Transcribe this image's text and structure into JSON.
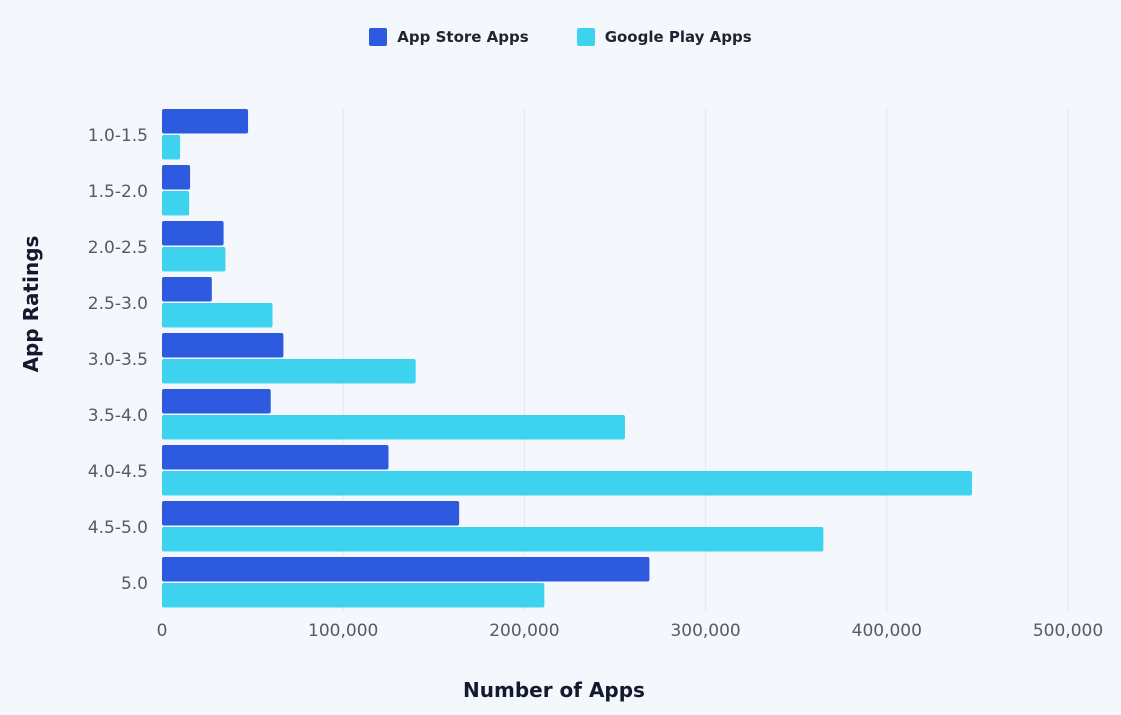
{
  "chart_data": {
    "type": "bar",
    "orientation": "horizontal",
    "title": "",
    "xlabel": "Number of Apps",
    "ylabel": "App Ratings",
    "categories": [
      "1.0-1.5",
      "1.5-2.0",
      "2.0-2.5",
      "2.5-3.0",
      "3.0-3.5",
      "3.5-4.0",
      "4.0-4.5",
      "4.5-5.0",
      "5.0"
    ],
    "series": [
      {
        "name": "App Store Apps",
        "color": "#2e5ae0",
        "values": [
          47500,
          15500,
          34000,
          27500,
          67000,
          60000,
          125000,
          164000,
          269000
        ]
      },
      {
        "name": "Google Play Apps",
        "color": "#3dd3ef",
        "values": [
          10000,
          15000,
          35000,
          61000,
          140000,
          255500,
          447000,
          365000,
          211000
        ]
      }
    ],
    "xlim": [
      0,
      500000
    ],
    "xticks": [
      0,
      100000,
      200000,
      300000,
      400000,
      500000
    ],
    "xtick_labels": [
      "0",
      "100,000",
      "200,000",
      "300,000",
      "400,000",
      "500,000"
    ],
    "grid": true,
    "legend_position": "top-center"
  }
}
